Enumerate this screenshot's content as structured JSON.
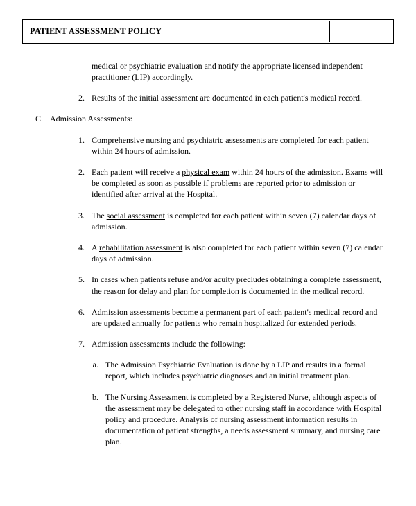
{
  "title": "PATIENT ASSESSMENT POLICY",
  "continuation": {
    "text": "medical or psychiatric evaluation and notify the appropriate licensed independent practitioner (LIP) accordingly."
  },
  "sectionB_item2": {
    "marker": "2.",
    "text": "Results of the initial assessment are documented in each patient's medical record."
  },
  "sectionC": {
    "marker": "C.",
    "label": "Admission Assessments:",
    "items": [
      {
        "marker": "1.",
        "text": "Comprehensive nursing and psychiatric assessments are completed for each patient within 24 hours of admission."
      },
      {
        "marker": "2.",
        "before": "Each patient will receive a ",
        "underlined": "physical exam",
        "after": " within 24 hours of the admission.  Exams will be completed as soon as possible if problems are reported prior to admission or identified after arrival at the Hospital."
      },
      {
        "marker": "3.",
        "before": "The ",
        "underlined": "social assessment",
        "after": " is completed for each patient within seven (7) calendar days of admission."
      },
      {
        "marker": "4.",
        "before": "A ",
        "underlined": "rehabilitation assessment",
        "after": " is also completed for each patient within seven (7) calendar days of admission."
      },
      {
        "marker": "5.",
        "text": "In cases when patients refuse and/or acuity precludes obtaining a complete assessment, the reason for delay and plan for completion is documented in the medical record."
      },
      {
        "marker": "6.",
        "text": "Admission assessments become a permanent part of each patient's medical record and are updated annually for patients who remain hospitalized for extended periods."
      },
      {
        "marker": "7.",
        "text": "Admission assessments include the following:"
      }
    ],
    "subitems": [
      {
        "marker": "a.",
        "text": "The Admission Psychiatric Evaluation is done by a LIP and results in a formal report, which includes psychiatric diagnoses and an initial treatment plan."
      },
      {
        "marker": "b.",
        "text": "The Nursing Assessment is completed by a Registered Nurse, although aspects of the assessment may be delegated to other nursing staff in accordance with Hospital policy and procedure.  Analysis of nursing assessment information results in documentation of patient strengths, a needs assessment summary, and nursing care plan."
      }
    ]
  }
}
